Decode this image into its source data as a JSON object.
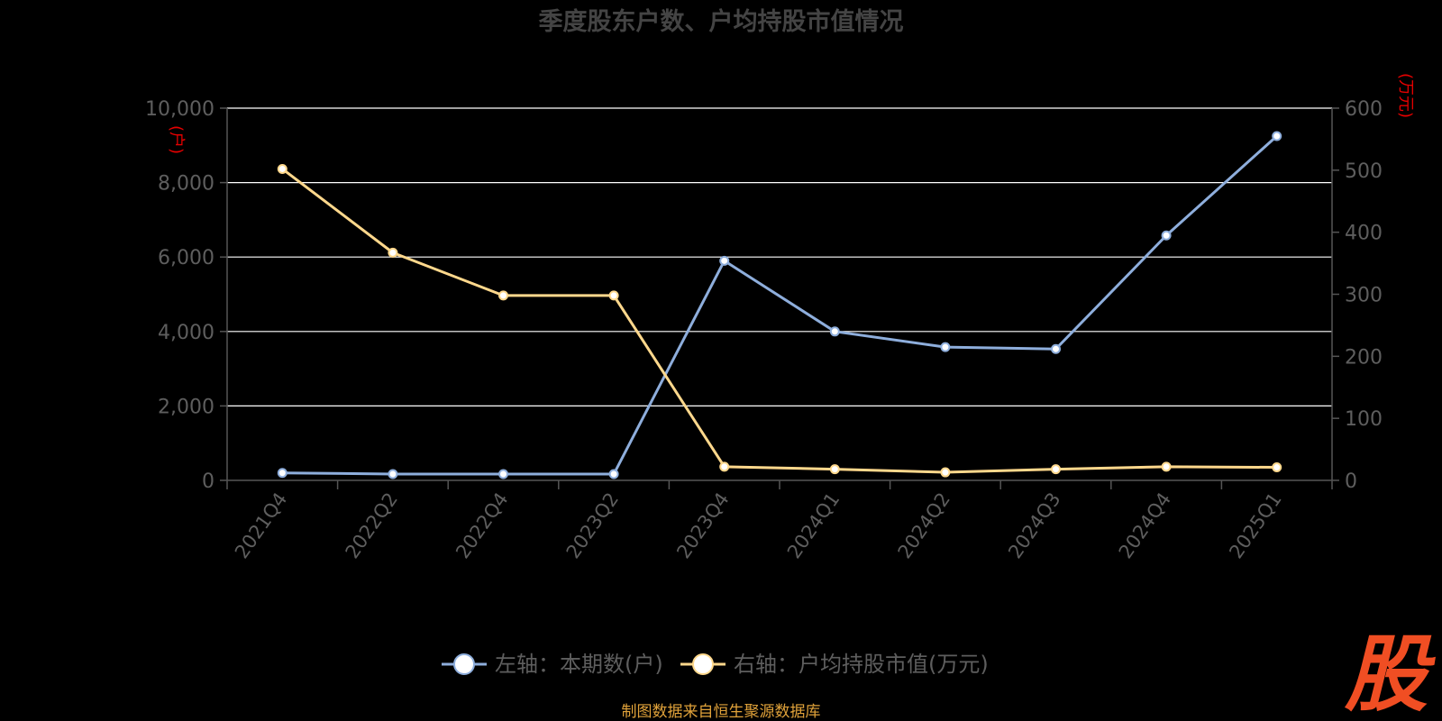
{
  "chart_data": {
    "type": "line",
    "title": "季度股东户数、户均持股市值情况",
    "categories": [
      "2021Q4",
      "2022Q2",
      "2022Q4",
      "2023Q2",
      "2023Q4",
      "2024Q1",
      "2024Q2",
      "2024Q3",
      "2024Q4",
      "2025Q1"
    ],
    "left_axis": {
      "unit": "(户)",
      "ylim": [
        0,
        10000
      ],
      "ticks": [
        "0",
        "2,000",
        "4,000",
        "6,000",
        "8,000",
        "10,000"
      ],
      "tick_values": [
        0,
        2000,
        4000,
        6000,
        8000,
        10000
      ]
    },
    "right_axis": {
      "unit": "(万元)",
      "ylim": [
        0,
        600
      ],
      "ticks": [
        "0",
        "100",
        "200",
        "300",
        "400",
        "500",
        "600"
      ],
      "tick_values": [
        0,
        100,
        200,
        300,
        400,
        500,
        600
      ]
    },
    "series": [
      {
        "name": "左轴：本期数(户)",
        "axis": "left",
        "color": "#8eaedc",
        "values": [
          200,
          170,
          170,
          170,
          5900,
          4000,
          3580,
          3530,
          6580,
          9250
        ]
      },
      {
        "name": "右轴：户均持股市值(万元)",
        "axis": "right",
        "color": "#ffd88c",
        "values": [
          502,
          367,
          298,
          298,
          22,
          18,
          13,
          18,
          22,
          21
        ]
      }
    ],
    "grid": true,
    "legend": "bottom-center"
  },
  "footer": {
    "source": "制图数据来自恒生聚源数据库"
  },
  "logo": {
    "text": "股",
    "color": "#f04e23"
  }
}
